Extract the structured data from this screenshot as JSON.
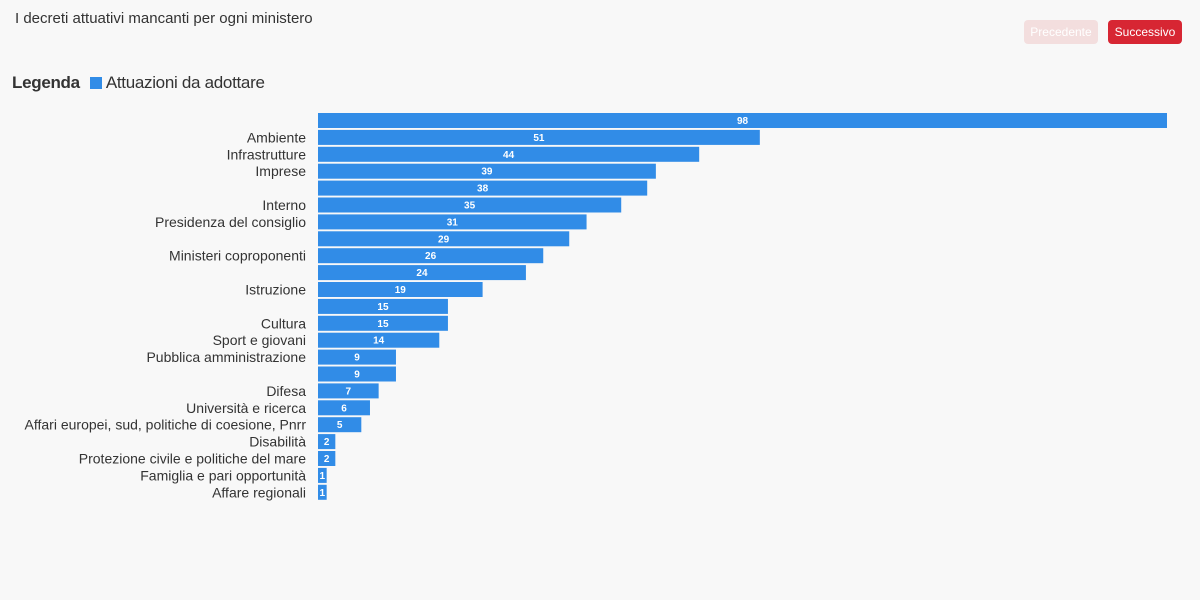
{
  "header": {
    "title": "I decreti attuativi mancanti per ogni ministero",
    "prev_label": "Precedente",
    "next_label": "Successivo"
  },
  "colors": {
    "bar": "#318ce7",
    "prev_bg": "#f3dede",
    "next_bg": "#d72633",
    "text": "#333333",
    "background": "#f8f8f8"
  },
  "legend": {
    "title": "Legenda",
    "items": [
      {
        "label": "Attuazioni da adottare",
        "color": "#318ce7"
      }
    ]
  },
  "chart_data": {
    "type": "bar",
    "orientation": "horizontal",
    "categories": [
      "",
      "Ambiente",
      "Infrastrutture",
      "Imprese",
      "",
      "Interno",
      "Presidenza del consiglio",
      "",
      "Ministeri coproponenti",
      "",
      "Istruzione",
      "",
      "Cultura",
      "Sport e giovani",
      "Pubblica amministrazione",
      "",
      "Difesa",
      "Università e ricerca",
      "Affari europei, sud, politiche di coesione, Pnrr",
      "Disabilità",
      "Protezione civile e politiche del mare",
      "Famiglia e pari opportunità",
      "Affare regionali"
    ],
    "series": [
      {
        "name": "Attuazioni da adottare",
        "values": [
          98,
          51,
          44,
          39,
          38,
          35,
          31,
          29,
          26,
          24,
          19,
          15,
          15,
          14,
          9,
          9,
          7,
          6,
          5,
          2,
          2,
          1,
          1
        ]
      }
    ],
    "xlim": [
      0,
      98
    ],
    "grid": false,
    "legend_position": "top-left"
  }
}
